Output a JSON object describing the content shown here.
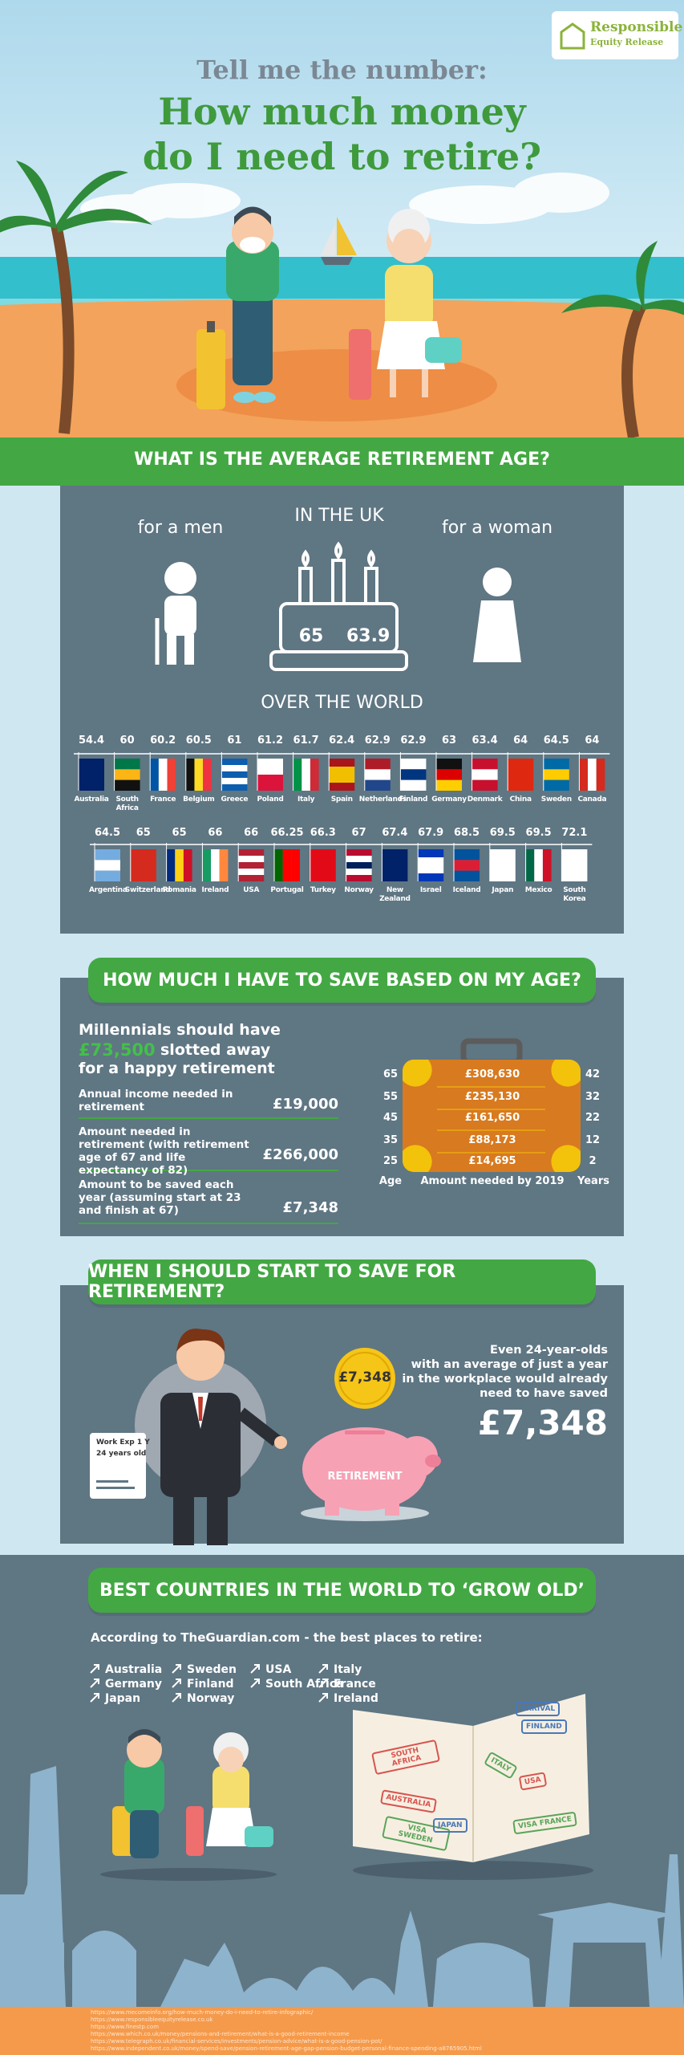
{
  "logo": {
    "line1": "Responsible",
    "line2": "Equity Release"
  },
  "header": {
    "kicker": "Tell me the number:",
    "title_lines": [
      "How much money",
      "do I need to retire?"
    ]
  },
  "section1": {
    "heading": "WHAT IS THE AVERAGE RETIREMENT AGE?",
    "men_label": "for a men",
    "uk_label": "IN THE UK",
    "women_label": "for a woman",
    "uk_men_age": 65,
    "uk_women_age": 63.9,
    "world_label": "OVER THE WORLD",
    "rows": [
      [
        {
          "name": "Australia",
          "age": 54.4
        },
        {
          "name": "South Africa",
          "age": 60
        },
        {
          "name": "France",
          "age": 60.2
        },
        {
          "name": "Belgium",
          "age": 60.5
        },
        {
          "name": "Greece",
          "age": 61
        },
        {
          "name": "Poland",
          "age": 61.2
        },
        {
          "name": "Italy",
          "age": 61.7
        },
        {
          "name": "Spain",
          "age": 62.4
        },
        {
          "name": "Netherlands",
          "age": 62.9
        },
        {
          "name": "Finland",
          "age": 62.9
        },
        {
          "name": "Germany",
          "age": 63
        },
        {
          "name": "Denmark",
          "age": 63.4
        },
        {
          "name": "China",
          "age": 64
        },
        {
          "name": "Sweden",
          "age": 64.5
        },
        {
          "name": "Canada",
          "age": 64
        }
      ],
      [
        {
          "name": "Argentina",
          "age": 64.5
        },
        {
          "name": "Switzerland",
          "age": 65
        },
        {
          "name": "Romania",
          "age": 65
        },
        {
          "name": "Ireland",
          "age": 66
        },
        {
          "name": "USA",
          "age": 66
        },
        {
          "name": "Portugal",
          "age": 66.25
        },
        {
          "name": "Turkey",
          "age": 66.3
        },
        {
          "name": "Norway",
          "age": 67
        },
        {
          "name": "New Zealand",
          "age": 67.4
        },
        {
          "name": "Israel",
          "age": 67.9
        },
        {
          "name": "Iceland",
          "age": 68.5
        },
        {
          "name": "Japan",
          "age": 69.5
        },
        {
          "name": "Mexico",
          "age": 69.5
        },
        {
          "name": "South Korea",
          "age": 72.1
        }
      ]
    ]
  },
  "section2": {
    "heading": "HOW MUCH I HAVE TO SAVE BASED ON MY AGE?",
    "intro": [
      "Millennials should have",
      "£73,500",
      "slotted away",
      "for a happy retirement"
    ],
    "facts": [
      {
        "label": "Annual income needed in retirement",
        "value": "£19,000"
      },
      {
        "label": "Amount needed in retirement (with retirement age of 67 and life expectancy of 82)",
        "value": "£266,000"
      },
      {
        "label": "Amount to be saved each year (assuming start at 23 and finish at 67)",
        "value": "£7,348"
      }
    ],
    "table": {
      "ages": [
        65,
        55,
        45,
        35,
        25
      ],
      "amounts": [
        "£308,630",
        "£235,130",
        "£161,650",
        "£88,173",
        "£14,695"
      ],
      "years": [
        42,
        32,
        22,
        12,
        2
      ],
      "age_label": "Age",
      "amount_label": "Amount needed by 2019",
      "years_label": "Years"
    }
  },
  "section3": {
    "heading": "WHEN I SHOULD START TO SAVE FOR RETIREMENT?",
    "cv_lines": [
      "Work Exp 1 Y",
      "24 years old"
    ],
    "coin": "£7,348",
    "piggy": "RETIREMENT",
    "text_lines": [
      "Even 24-year-olds",
      "with an average of just a year",
      "in the workplace would already",
      "need to have saved"
    ],
    "amount": "£7,348"
  },
  "section4": {
    "heading": "BEST COUNTRIES IN THE WORLD TO ‘GROW OLD’",
    "intro": "According to TheGuardian.com - the best places to retire:",
    "columns": [
      [
        "Australia",
        "Germany",
        "Japan"
      ],
      [
        "Sweden",
        "Finland",
        "Norway"
      ],
      [
        "USA",
        "South Africa"
      ],
      [
        "Italy",
        "France",
        "Ireland"
      ]
    ],
    "stamps": [
      "SOUTH AFRICA",
      "AUSTRALIA",
      "ARRIVAL",
      "FINLAND",
      "ITALY",
      "USA",
      "VISA SWEDEN",
      "JAPAN",
      "VISA FRANCE"
    ]
  },
  "footer": {
    "sources": [
      "https://www.mecomeinfo.org/how-much-money-do-i-need-to-retire-infographic/",
      "https://www.responsibleequityrelease.co.uk",
      "https://www.finestp.com",
      "https://www.which.co.uk/money/pensions-and-retirement/what-is-a-good-retirement-income",
      "https://www.telegraph.co.uk/financial-services/investments/pension-advice/what-is-a-good-pension-pot/",
      "https://www.independent.co.uk/money/spend-save/pension-retirement-age-gap-pension-budget-personal-finance-spending-a8765905.html"
    ]
  }
}
